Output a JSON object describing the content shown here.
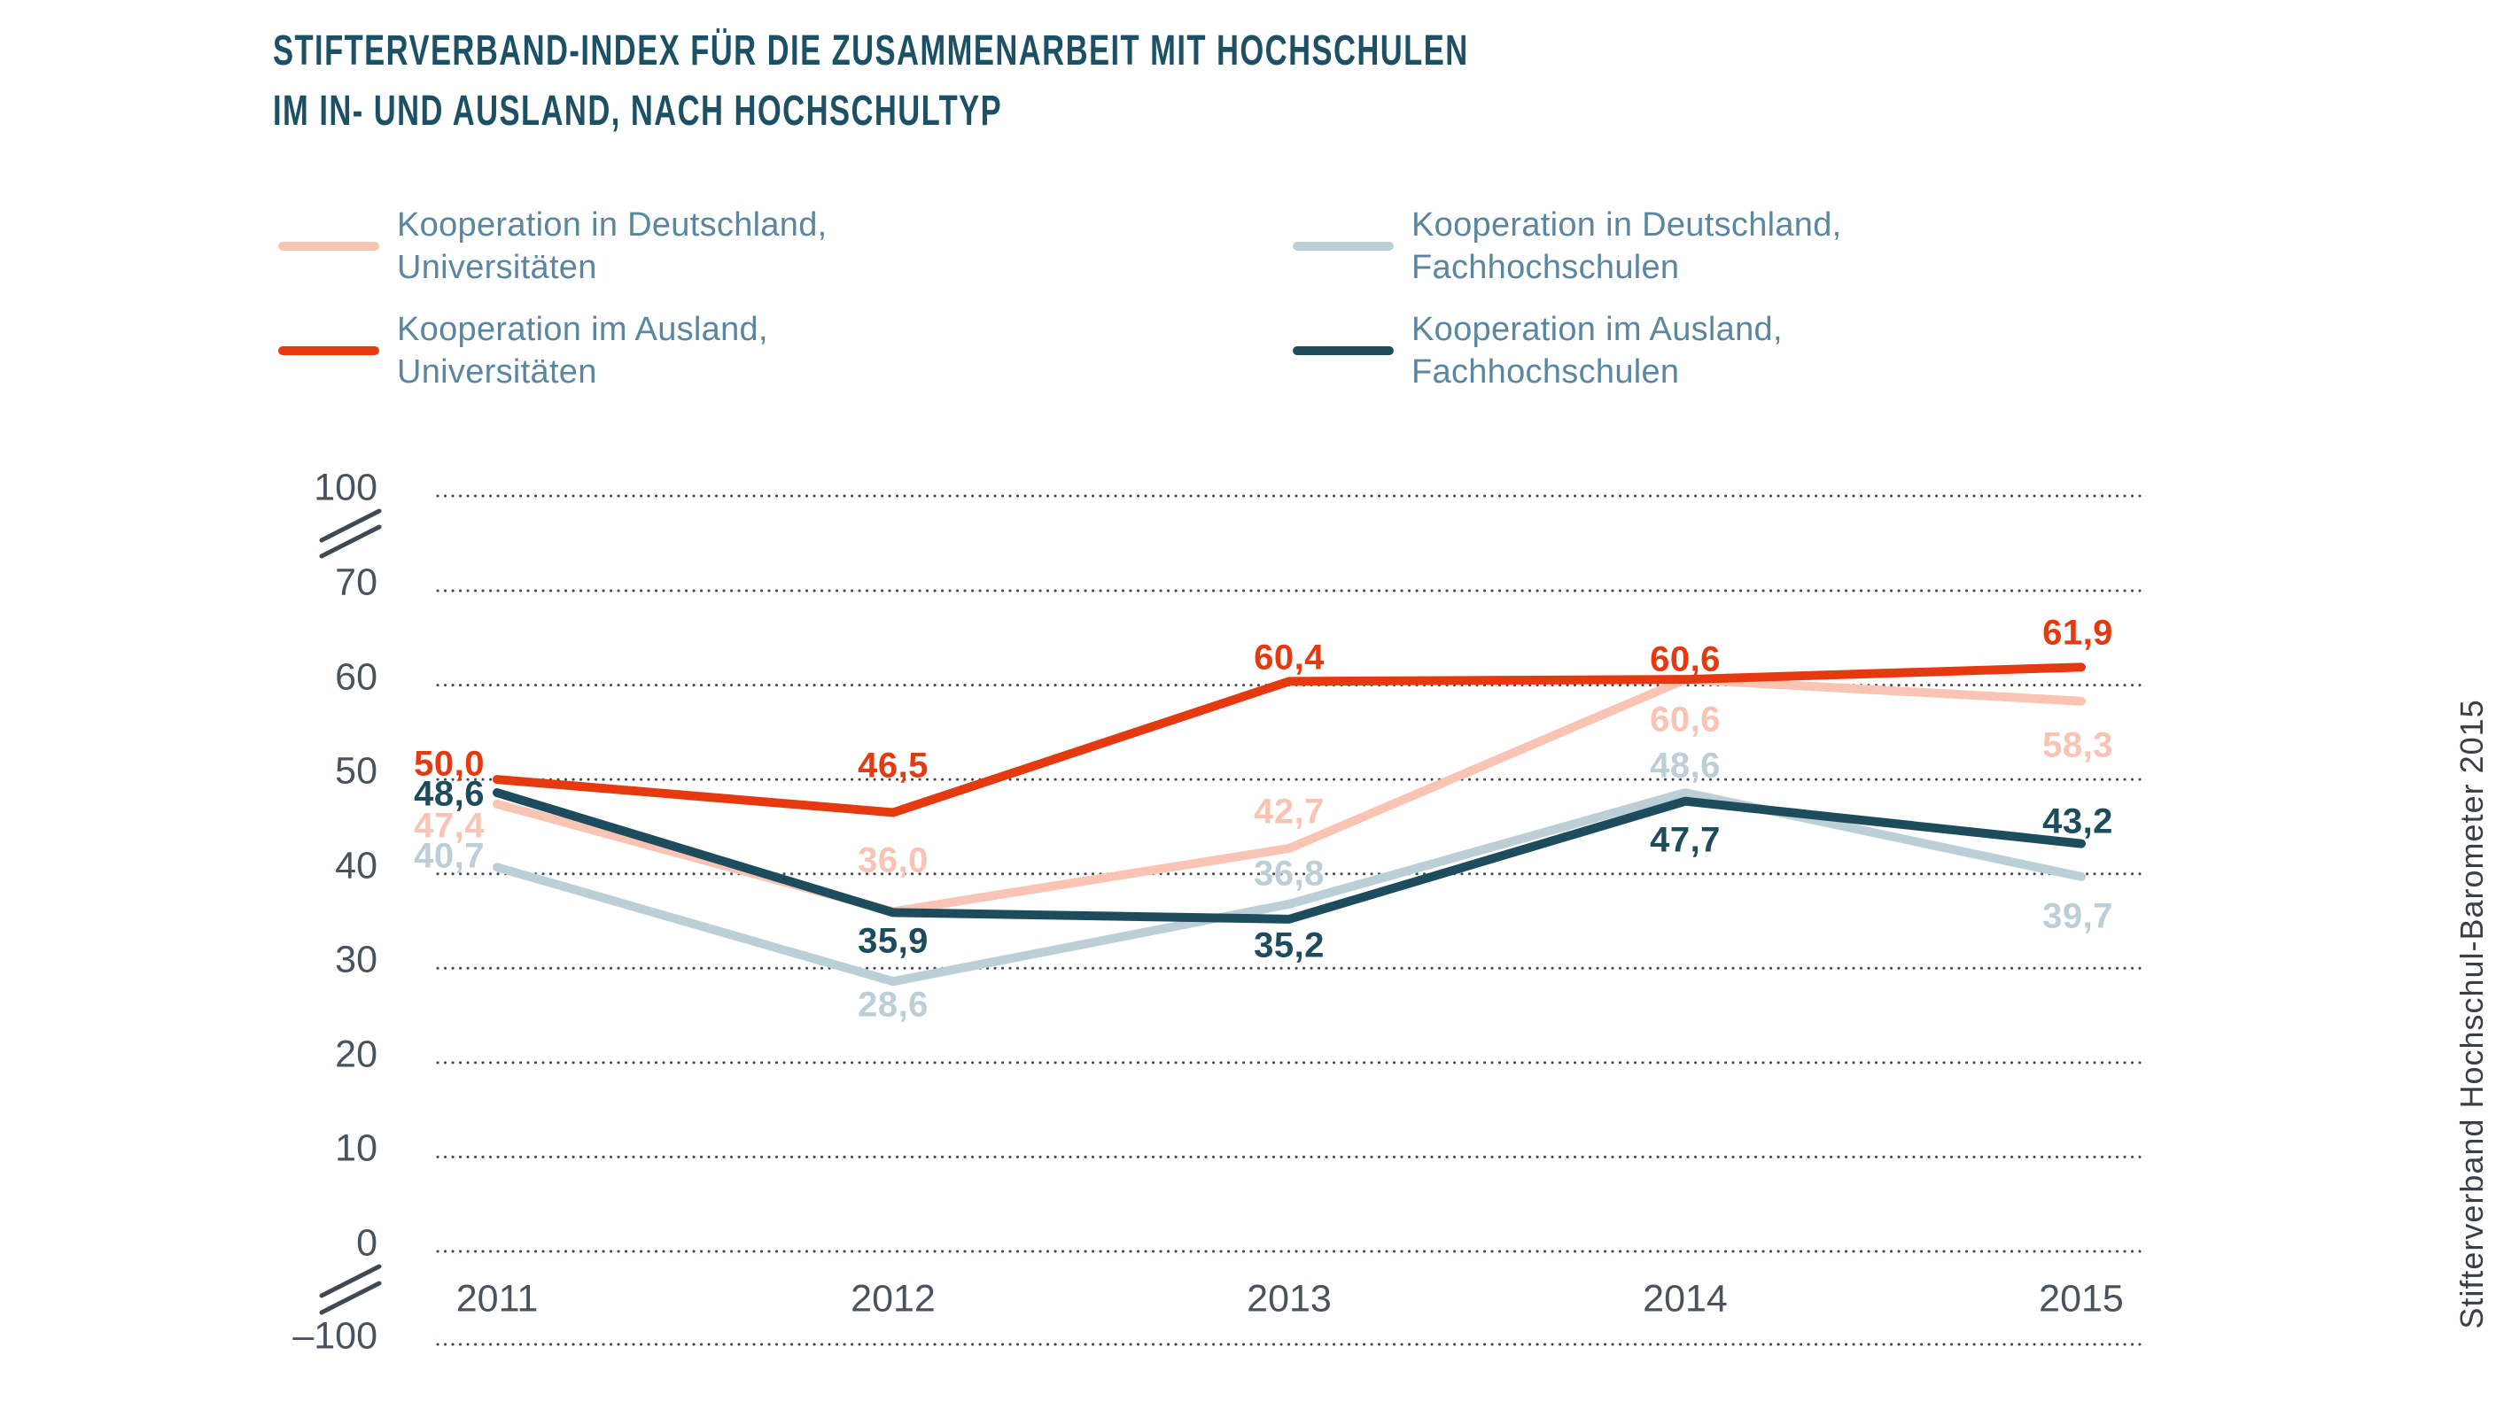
{
  "title": {
    "line1": "STIFTERVERBAND-INDEX FÜR DIE ZUSAMMENARBEIT MIT HOCHSCHULEN",
    "line2": "IM IN- UND AUSLAND, NACH HOCHSCHULTYP"
  },
  "source_label": "Stifterverband Hochschul-Barometer 2015",
  "colors": {
    "title": "#1c5064",
    "legend_text": "#5b86a0",
    "axis_text": "#49535e",
    "gridline": "#3f4953",
    "gridline_zero": "#2e4d5c",
    "pink": "#f9c4b4",
    "red": "#e53a10",
    "light_blue_gray": "#bccfd6",
    "dark_teal": "#1d4c5c"
  },
  "chart_data": {
    "type": "line",
    "x": [
      "2011",
      "2012",
      "2013",
      "2014",
      "2015"
    ],
    "series": [
      {
        "name": "Kooperation in Deutschland, Universitäten",
        "legend": [
          "Kooperation in Deutschland,",
          "Universitäten"
        ],
        "color": "#f9c4b4",
        "values": [
          47.4,
          36.0,
          42.7,
          60.6,
          58.3
        ]
      },
      {
        "name": "Kooperation im Ausland, Universitäten",
        "legend": [
          "Kooperation im Ausland,",
          "Universitäten"
        ],
        "color": "#e53a10",
        "values": [
          50.0,
          46.5,
          60.4,
          60.6,
          61.9
        ]
      },
      {
        "name": "Kooperation in Deutschland, Fachhochschulen",
        "legend": [
          "Kooperation in Deutschland,",
          "Fachhochschulen"
        ],
        "color": "#bccfd6",
        "values": [
          40.7,
          28.6,
          36.8,
          48.6,
          39.7
        ]
      },
      {
        "name": "Kooperation im Ausland, Fachhochschulen",
        "legend": [
          "Kooperation im Ausland,",
          "Fachhochschulen"
        ],
        "color": "#1d4c5c",
        "values": [
          48.6,
          35.9,
          35.2,
          47.7,
          43.2
        ]
      }
    ],
    "y_ticks": [
      100,
      70,
      60,
      50,
      40,
      30,
      20,
      10,
      0,
      -100
    ],
    "y_tick_labels": [
      "100",
      "70",
      "60",
      "50",
      "40",
      "30",
      "20",
      "10",
      "0",
      "–100"
    ],
    "axis_breaks": [
      "between 100 and 70",
      "between 0 and -100"
    ],
    "grid": "dotted horizontal lines",
    "legend_position": "top",
    "decimal_separator": ","
  }
}
